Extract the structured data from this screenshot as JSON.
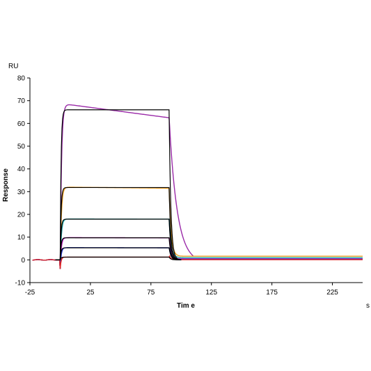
{
  "chart_data": {
    "type": "line",
    "title": "",
    "xlabel": "Tim e",
    "ylabel": "Response",
    "y_unit": "RU",
    "x_unit": "s",
    "xlim": [
      -25,
      250
    ],
    "ylim": [
      -10,
      80
    ],
    "x_ticks": [
      -25,
      25,
      75,
      125,
      175,
      225
    ],
    "y_ticks": [
      -10,
      0,
      10,
      20,
      30,
      40,
      50,
      60,
      70,
      80
    ],
    "grid": false,
    "legend": "none",
    "injection": {
      "start": 0,
      "end": 90
    },
    "series": [
      {
        "color": "#9a2aa8",
        "plateau": 68.8,
        "plateau_end": 62.5,
        "kon": 0.9,
        "koff": 0.15,
        "residual": -1.5,
        "data_end": 110
      },
      {
        "color": "#f0a020",
        "plateau": 32.0,
        "plateau_end": 31.5,
        "kon": 1.0,
        "koff": 0.6,
        "residual": 1.6,
        "data_end": 250
      },
      {
        "color": "#22aaaa",
        "plateau": 18.0,
        "plateau_end": 17.9,
        "kon": 1.0,
        "koff": 0.6,
        "residual": 1.0,
        "data_end": 250
      },
      {
        "color": "#c020c0",
        "plateau": 9.8,
        "plateau_end": 9.7,
        "kon": 1.0,
        "koff": 0.6,
        "residual": 0.5,
        "data_end": 250
      },
      {
        "color": "#2233cc",
        "plateau": 5.4,
        "plateau_end": 5.3,
        "kon": 1.0,
        "koff": 0.6,
        "residual": 0.3,
        "data_end": 250
      },
      {
        "color": "#dd2222",
        "plateau": 1.2,
        "plateau_end": 1.2,
        "kon": 1.0,
        "koff": 0.6,
        "residual": 0.1,
        "data_end": 250
      }
    ],
    "fits": [
      {
        "color": "#000000",
        "plateau": 66.0
      },
      {
        "color": "#000000",
        "plateau": 31.8
      },
      {
        "color": "#000000",
        "plateau": 17.9
      },
      {
        "color": "#000000",
        "plateau": 9.7
      },
      {
        "color": "#000000",
        "plateau": 5.3
      },
      {
        "color": "#000000",
        "plateau": 1.2
      }
    ]
  }
}
